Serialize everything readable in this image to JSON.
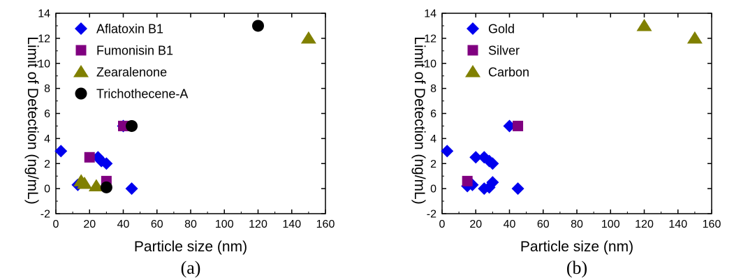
{
  "chart_data": [
    {
      "type": "scatter",
      "panel_label": "(a)",
      "xlabel": "Particle size (nm)",
      "ylabel": "Limit of Detection (ng/mL)",
      "xlim": [
        0,
        160
      ],
      "ylim": [
        -2,
        14
      ],
      "x_ticks": [
        0,
        20,
        40,
        60,
        80,
        100,
        120,
        140,
        160
      ],
      "y_ticks": [
        -2,
        0,
        2,
        4,
        6,
        8,
        10,
        12,
        14
      ],
      "legend_position": "top-left",
      "series": [
        {
          "name": "Aflatoxin B1",
          "marker": "diamond",
          "color": "#0000ee",
          "points": [
            [
              3,
              3
            ],
            [
              13,
              0.3
            ],
            [
              25,
              2.5
            ],
            [
              27,
              2.2
            ],
            [
              30,
              2
            ],
            [
              40,
              5
            ],
            [
              45,
              0
            ]
          ]
        },
        {
          "name": "Fumonisin B1",
          "marker": "square",
          "color": "#800080",
          "points": [
            [
              20,
              2.5
            ],
            [
              30,
              0.6
            ],
            [
              40,
              5
            ]
          ]
        },
        {
          "name": "Zearalenone",
          "marker": "triangle",
          "color": "#808000",
          "points": [
            [
              15,
              0.6
            ],
            [
              17,
              0.4
            ],
            [
              24,
              0.2
            ],
            [
              150,
              12
            ]
          ]
        },
        {
          "name": "Trichothecene-A",
          "marker": "circle",
          "color": "#000000",
          "points": [
            [
              30,
              0.1
            ],
            [
              45,
              5
            ],
            [
              120,
              13
            ]
          ]
        }
      ]
    },
    {
      "type": "scatter",
      "panel_label": "(b)",
      "xlabel": "Particle size (nm)",
      "ylabel": "Limit of Detection (ng/mL)",
      "xlim": [
        0,
        160
      ],
      "ylim": [
        -2,
        14
      ],
      "x_ticks": [
        0,
        20,
        40,
        60,
        80,
        100,
        120,
        140,
        160
      ],
      "y_ticks": [
        -2,
        0,
        2,
        4,
        6,
        8,
        10,
        12,
        14
      ],
      "legend_position": "top-left",
      "series": [
        {
          "name": "Gold",
          "marker": "diamond",
          "color": "#0000ee",
          "points": [
            [
              3,
              3
            ],
            [
              15,
              0.2
            ],
            [
              18,
              0.3
            ],
            [
              20,
              2.5
            ],
            [
              25,
              2.5
            ],
            [
              25,
              0
            ],
            [
              28,
              0.1
            ],
            [
              28,
              2.2
            ],
            [
              30,
              2
            ],
            [
              30,
              0.5
            ],
            [
              40,
              5
            ],
            [
              45,
              0
            ]
          ]
        },
        {
          "name": "Silver",
          "marker": "square",
          "color": "#800080",
          "points": [
            [
              15,
              0.6
            ],
            [
              45,
              5
            ]
          ]
        },
        {
          "name": "Carbon",
          "marker": "triangle",
          "color": "#808000",
          "points": [
            [
              120,
              13
            ],
            [
              150,
              12
            ]
          ]
        }
      ]
    }
  ]
}
